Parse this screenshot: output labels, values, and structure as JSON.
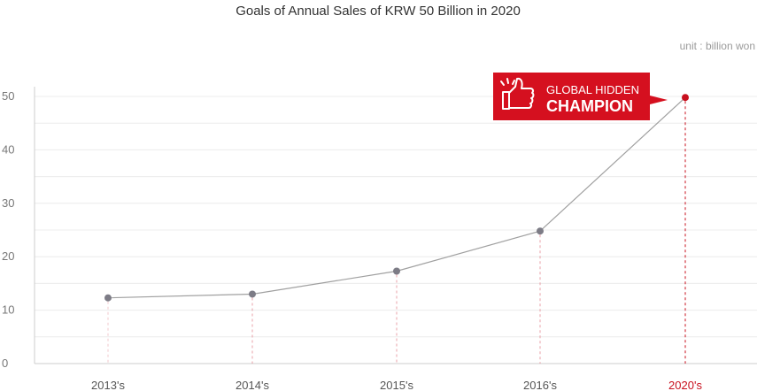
{
  "chart_data": {
    "type": "line",
    "title": "Goals of Annual Sales of KRW 50 Billion in 2020",
    "unit_label": "unit : billion won",
    "xlabel": "",
    "ylabel": "",
    "categories": [
      "2013's",
      "2014's",
      "2015's",
      "2016's",
      "2020's"
    ],
    "values": [
      12.3,
      13.0,
      17.3,
      24.8,
      49.8
    ],
    "highlight_index": 4,
    "ylim": [
      0,
      50
    ],
    "yticks": [
      0,
      10,
      20,
      30,
      40,
      50
    ],
    "grid": true,
    "callout": {
      "line1": "GLOBAL HIDDEN",
      "line2": "CHAMPION",
      "icon": "thumbs-up-icon"
    },
    "colors": {
      "line": "#a0a0a0",
      "point": "#7d7c86",
      "highlight": "#c8101e",
      "guide": "#e58a93",
      "grid": "#ececec",
      "axis": "#cccccc"
    }
  }
}
